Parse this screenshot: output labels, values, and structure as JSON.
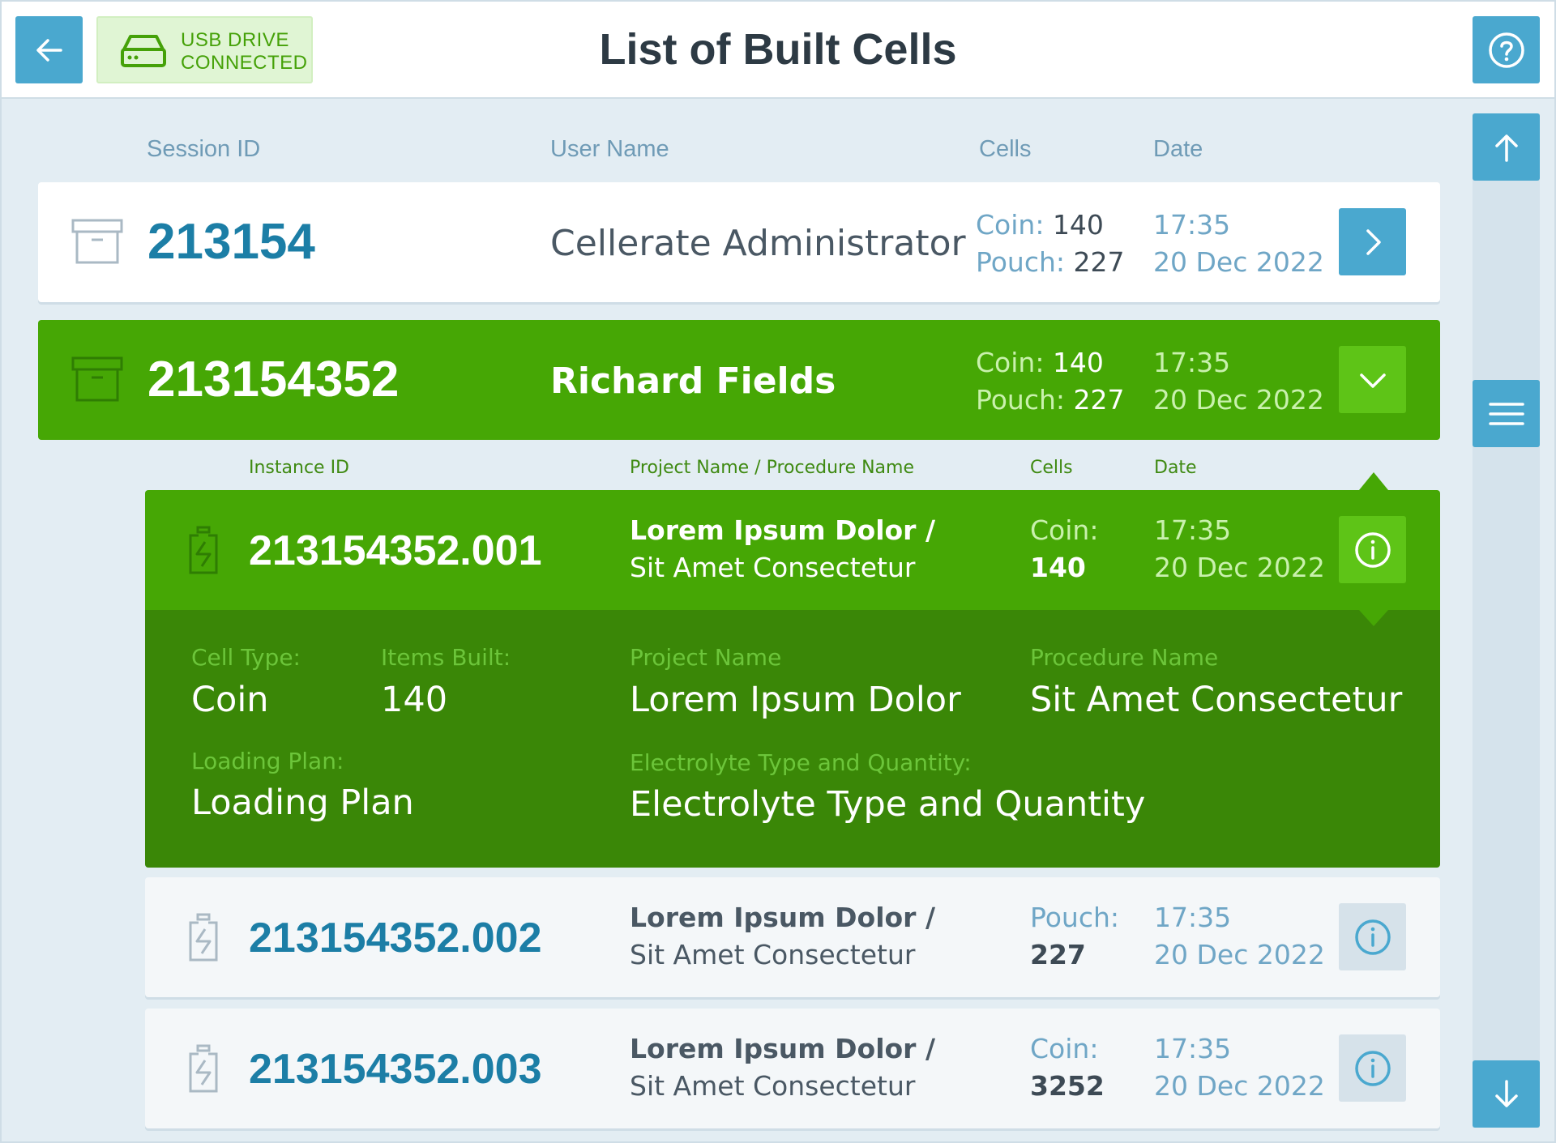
{
  "header": {
    "title": "List of Built Cells",
    "usb_status_line1": "USB DRIVE",
    "usb_status_line2": "CONNECTED",
    "back_icon": "arrow-left-icon",
    "help_icon": "question-circle-icon",
    "usb_icon": "drive-icon"
  },
  "columns": {
    "session_id": "Session ID",
    "user_name": "User Name",
    "cells": "Cells",
    "date": "Date"
  },
  "sessions": [
    {
      "id": "213154",
      "user": "Cellerate Administrator",
      "coin_label": "Coin:",
      "coin_value": "140",
      "pouch_label": "Pouch:",
      "pouch_value": "227",
      "time": "17:35",
      "date": "20 Dec 2022",
      "state": "collapsed"
    },
    {
      "id": "213154352",
      "user": "Richard Fields",
      "coin_label": "Coin:",
      "coin_value": "140",
      "pouch_label": "Pouch:",
      "pouch_value": "227",
      "time": "17:35",
      "date": "20 Dec 2022",
      "state": "expanded"
    }
  ],
  "sub_columns": {
    "instance_id": "Instance ID",
    "project": "Project Name / Procedure Name",
    "cells": "Cells",
    "date": "Date"
  },
  "instances": [
    {
      "id": "213154352.001",
      "project_line1": "Lorem Ipsum Dolor /",
      "project_line2": "Sit Amet Consectetur",
      "cell_label": "Coin:",
      "cell_value": "140",
      "time": "17:35",
      "date": "20 Dec 2022",
      "state": "active"
    },
    {
      "id": "213154352.002",
      "project_line1": "Lorem Ipsum Dolor /",
      "project_line2": "Sit Amet Consectetur",
      "cell_label": "Pouch:",
      "cell_value": "227",
      "time": "17:35",
      "date": "20 Dec 2022",
      "state": "inactive"
    },
    {
      "id": "213154352.003",
      "project_line1": "Lorem Ipsum Dolor /",
      "project_line2": "Sit Amet Consectetur",
      "cell_label": "Coin:",
      "cell_value": "3252",
      "time": "17:35",
      "date": "20 Dec 2022",
      "state": "inactive"
    }
  ],
  "detail": {
    "cell_type_label": "Cell Type:",
    "cell_type_value": "Coin",
    "items_built_label": "Items Built:",
    "items_built_value": "140",
    "project_name_label": "Project Name",
    "project_name_value": "Lorem Ipsum Dolor",
    "procedure_name_label": "Procedure Name",
    "procedure_name_value": "Sit Amet Consectetur",
    "loading_plan_label": "Loading Plan:",
    "loading_plan_value": "Loading Plan",
    "electrolyte_label": "Electrolyte Type and Quantity:",
    "electrolyte_value": "Electrolyte Type and Quantity"
  },
  "colors": {
    "accent_blue": "#4aa8cf",
    "id_blue": "#1c7ea6",
    "green": "#46a705",
    "green_dark": "#3a8707",
    "green_light": "#5ec417",
    "background": "#e3edf3"
  }
}
